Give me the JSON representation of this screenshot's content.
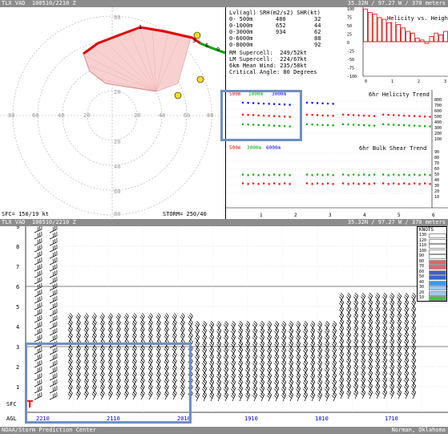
{
  "top_bar": {
    "left": "TLX VAD  100510/2210 Z",
    "right": "35.32N / 97.27 W / 370 meters"
  },
  "mid_bar": {
    "left": "TLX VAD  100510/2210 Z",
    "right": "35.32N / 97.27 W / 370 meters"
  },
  "bottom_bar": {
    "left": "NOAA/Storm Prediction Center",
    "right": "Norman, Oklahoma"
  },
  "hodograph": {
    "rings": [
      "20",
      "40",
      "60",
      "80",
      "20",
      "40",
      "60",
      "80",
      "20",
      "40",
      "60",
      "80",
      "20",
      "40",
      "60",
      "80"
    ],
    "sfc_label": "SFC= 150/19 kt",
    "storm_label": "STORM= 250/40",
    "point_labels": [
      "1",
      "3",
      "6",
      "9"
    ]
  },
  "stats": {
    "header": "Lvl(agl) SRH(m2/s2) SHR(kt)",
    "rows": [
      {
        "lvl": "0- 500m",
        "srh": "480",
        "shr": "32"
      },
      {
        "lvl": "0-1000m",
        "srh": "652",
        "shr": "44"
      },
      {
        "lvl": "0-3000m",
        "srh": "934",
        "shr": "62"
      },
      {
        "lvl": "0-6000m",
        "srh": "",
        "shr": "88"
      },
      {
        "lvl": "0-8000m",
        "srh": "",
        "shr": "92"
      }
    ],
    "rm": "RM Supercell:  249/52kt",
    "lm": "LM Supercell:  224/67kt",
    "mean": "6km Mean Wind: 235/58kt",
    "critical": "Critical Angle: 80 Degrees"
  },
  "helicity_height": {
    "title": "Helicity vs. Height",
    "yticks": [
      "100",
      "75",
      "50",
      "25",
      "0",
      "-25",
      "-50",
      "-75",
      "-100"
    ],
    "xticks": [
      "0",
      "1",
      "2",
      "3"
    ],
    "values": [
      95,
      85,
      80,
      70,
      65,
      55,
      60,
      50,
      40,
      30,
      25,
      10,
      5,
      -5,
      15,
      25,
      20,
      30
    ]
  },
  "helicity_trend": {
    "title": "6hr Helicity Trend",
    "legend": [
      {
        "label": "500m",
        "color": "#ff0000"
      },
      {
        "label": "1000m",
        "color": "#00aa00"
      },
      {
        "label": "3000m",
        "color": "#0000ff"
      }
    ],
    "yticks": [
      "800",
      "700",
      "600",
      "500",
      "400",
      "300",
      "200",
      "100"
    ],
    "xticks": [
      "1",
      "2",
      "3",
      "4",
      "5",
      "6"
    ]
  },
  "shear_trend": {
    "title": "6hr Bulk Shear Trend",
    "legend": [
      {
        "label": "500m",
        "color": "#ff0000"
      },
      {
        "label": "3000m",
        "color": "#00aa00"
      },
      {
        "label": "6000m",
        "color": "#0000ff"
      }
    ],
    "yticks": [
      "90",
      "80",
      "70",
      "60",
      "50",
      "40",
      "30",
      "20",
      "10"
    ]
  },
  "time_height": {
    "yticks": [
      "9",
      "8",
      "7",
      "6",
      "5",
      "4",
      "3",
      "2",
      "1"
    ],
    "y_sfc": "SFC",
    "y_agl": "AGL",
    "xticks": [
      "2210",
      "2110",
      "2010",
      "1910",
      "1810",
      "1710"
    ],
    "red_marker": "T",
    "legend_title": "KNOTS",
    "legend": [
      {
        "label": "130",
        "color": "#ffffff"
      },
      {
        "label": "120",
        "color": "#ffffff"
      },
      {
        "label": "110",
        "color": "#ffffff"
      },
      {
        "label": "100",
        "color": "#ffffff"
      },
      {
        "label": "90",
        "color": "#ffffff"
      },
      {
        "label": "80",
        "color": "#e06666"
      },
      {
        "label": "70",
        "color": "#e06666"
      },
      {
        "label": "60",
        "color": "#3366cc"
      },
      {
        "label": "50",
        "color": "#3366cc"
      },
      {
        "label": "40",
        "color": "#3399ff"
      },
      {
        "label": "30",
        "color": "#99ccff"
      },
      {
        "label": "20",
        "color": "#99ccff"
      },
      {
        "label": "10",
        "color": "#33cc33"
      }
    ]
  }
}
